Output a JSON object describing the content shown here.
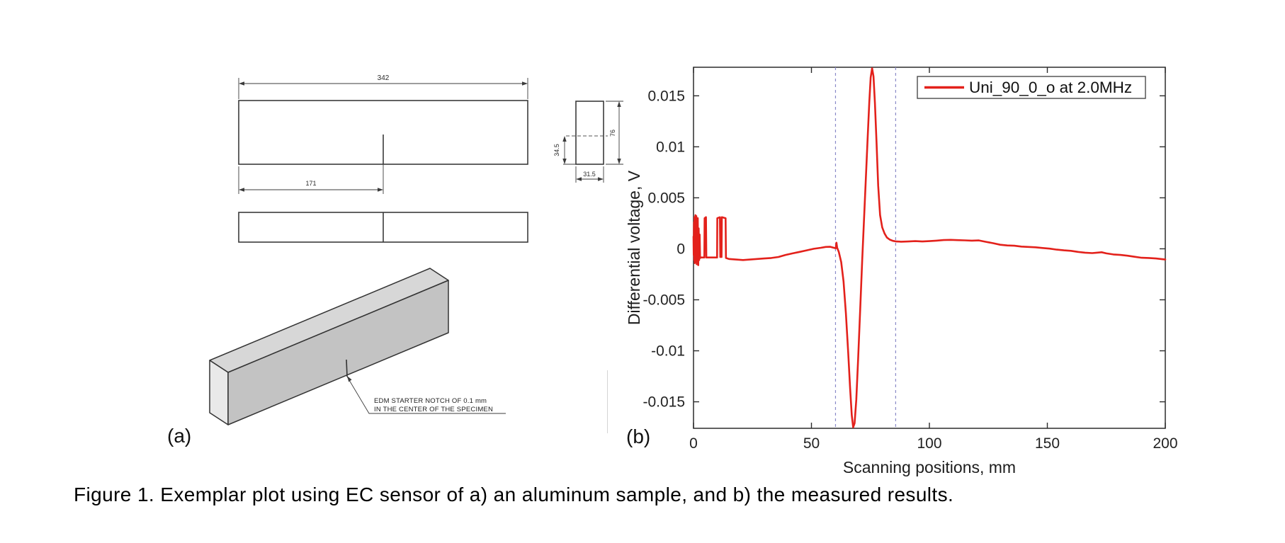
{
  "figure": {
    "panel_a_label": "(a)",
    "panel_b_label": "(b)",
    "caption": "Figure 1. Exemplar plot using EC sensor of a) an aluminum sample, and b) the measured results."
  },
  "drawing": {
    "front_view": {
      "length_dim": "342",
      "notch_offset_dim": "171"
    },
    "end_view": {
      "width_dim": "31.5",
      "height_dim": "76",
      "notch_depth_dim": "34.5"
    },
    "notch_note_line1": "EDM STARTER NOTCH OF 0.1 mm",
    "notch_note_line2": "IN THE CENTER OF THE SPECIMEN",
    "colors": {
      "line": "#3b3b3b",
      "face_front": "#c3c3c3",
      "face_top": "#d7d7d7",
      "face_end": "#e9e9e9"
    }
  },
  "chart_data": {
    "type": "line",
    "title": "",
    "xlabel": "Scanning positions, mm",
    "ylabel": "Differential voltage, V",
    "xlim": [
      0,
      200
    ],
    "ylim": [
      -0.0176,
      0.0178
    ],
    "xticks": [
      0,
      50,
      100,
      150,
      200
    ],
    "yticks": [
      -0.015,
      -0.01,
      -0.005,
      0,
      0.005,
      0.01,
      0.015
    ],
    "ytick_labels": [
      "-0.015",
      "-0.01",
      "-0.005",
      "0",
      "0.005",
      "0.01",
      "0.015"
    ],
    "grid": false,
    "box": true,
    "tick_direction": "in",
    "axis_color": "#2b2b2b",
    "background": "#ffffff",
    "legend": {
      "position": "top-right",
      "entries": [
        {
          "label": "Uni_90_0_o at 2.0MHz",
          "color": "#e3211b"
        }
      ]
    },
    "vlines": {
      "x": [
        60.2,
        85.7
      ],
      "style": "dashed",
      "color": "#8a8ac8"
    },
    "series": [
      {
        "name": "Uni_90_0_o at 2.0MHz",
        "color": "#e3211b",
        "points": [
          [
            0,
            0.0012
          ],
          [
            0.1,
            -0.0006
          ],
          [
            0.2,
            0.0026
          ],
          [
            0.3,
            -0.0011
          ],
          [
            0.4,
            0.0031
          ],
          [
            0.5,
            -0.0014
          ],
          [
            0.6,
            0.0029
          ],
          [
            0.7,
            -0.0007
          ],
          [
            0.8,
            0.0033
          ],
          [
            0.9,
            -0.0013
          ],
          [
            1.0,
            0.003
          ],
          [
            1.1,
            -0.0005
          ],
          [
            1.2,
            0.0032
          ],
          [
            1.35,
            -0.0015
          ],
          [
            1.5,
            0.0028
          ],
          [
            1.65,
            -0.0009
          ],
          [
            1.8,
            0.003
          ],
          [
            2.0,
            -0.0016
          ],
          [
            2.2,
            0.002
          ],
          [
            2.4,
            -0.0011
          ],
          [
            2.6,
            0.0014
          ],
          [
            2.8,
            -0.0009
          ],
          [
            3.2,
            -0.00085
          ],
          [
            4.6,
            -0.00085
          ],
          [
            4.7,
            0.003
          ],
          [
            5.3,
            0.0031
          ],
          [
            5.45,
            -0.00085
          ],
          [
            10.0,
            -0.00085
          ],
          [
            10.1,
            0.003
          ],
          [
            11.2,
            0.0031
          ],
          [
            11.35,
            -0.0008
          ],
          [
            11.9,
            -0.0008
          ],
          [
            12.0,
            0.0031
          ],
          [
            13.6,
            0.003
          ],
          [
            13.75,
            -0.0009
          ],
          [
            15,
            -0.001
          ],
          [
            18,
            -0.00105
          ],
          [
            21,
            -0.0011
          ],
          [
            24,
            -0.00105
          ],
          [
            27,
            -0.001
          ],
          [
            30,
            -0.00095
          ],
          [
            33,
            -0.0009
          ],
          [
            36,
            -0.0008
          ],
          [
            39,
            -0.0006
          ],
          [
            42,
            -0.00045
          ],
          [
            45,
            -0.0003
          ],
          [
            48,
            -0.00015
          ],
          [
            51,
            0.0
          ],
          [
            54,
            0.0001
          ],
          [
            56,
            0.00018
          ],
          [
            58,
            0.0002
          ],
          [
            59.5,
            0.0001
          ],
          [
            60.3,
            5e-05
          ],
          [
            60.6,
            0.0006
          ],
          [
            60.9,
            0.0001
          ],
          [
            61.6,
            -0.0003
          ],
          [
            62.6,
            -0.0013
          ],
          [
            63.6,
            -0.0032
          ],
          [
            64.6,
            -0.0063
          ],
          [
            65.6,
            -0.0102
          ],
          [
            66.4,
            -0.0137
          ],
          [
            67.1,
            -0.0163
          ],
          [
            67.7,
            -0.0175
          ],
          [
            68.3,
            -0.0171
          ],
          [
            69.0,
            -0.0148
          ],
          [
            69.8,
            -0.0108
          ],
          [
            70.7,
            -0.0058
          ],
          [
            71.5,
            -0.0012
          ],
          [
            72.2,
            0.0024
          ],
          [
            73.0,
            0.0066
          ],
          [
            73.8,
            0.0108
          ],
          [
            74.5,
            0.0143
          ],
          [
            75.1,
            0.0168
          ],
          [
            75.7,
            0.0177
          ],
          [
            76.3,
            0.0169
          ],
          [
            76.9,
            0.0143
          ],
          [
            77.6,
            0.0104
          ],
          [
            78.3,
            0.0062
          ],
          [
            79.1,
            0.0033
          ],
          [
            80.0,
            0.0021
          ],
          [
            81.0,
            0.0015
          ],
          [
            82.0,
            0.0011
          ],
          [
            83.2,
            0.0009
          ],
          [
            84.5,
            0.00078
          ],
          [
            86,
            0.00072
          ],
          [
            88,
            0.0007
          ],
          [
            91,
            0.00072
          ],
          [
            94,
            0.00075
          ],
          [
            97,
            0.00072
          ],
          [
            100,
            0.00075
          ],
          [
            103,
            0.0008
          ],
          [
            106,
            0.00086
          ],
          [
            109,
            0.00088
          ],
          [
            112,
            0.00085
          ],
          [
            115,
            0.00083
          ],
          [
            118,
            0.0008
          ],
          [
            121,
            0.00082
          ],
          [
            124,
            0.00068
          ],
          [
            127,
            0.00055
          ],
          [
            130,
            0.0004
          ],
          [
            133,
            0.00033
          ],
          [
            136,
            0.0003
          ],
          [
            139,
            0.00022
          ],
          [
            142,
            0.00018
          ],
          [
            145,
            0.00015
          ],
          [
            148,
            8e-05
          ],
          [
            151,
            2e-05
          ],
          [
            154,
            -8e-05
          ],
          [
            157,
            -0.00015
          ],
          [
            160,
            -0.0002
          ],
          [
            163,
            -0.0003
          ],
          [
            166,
            -0.00038
          ],
          [
            169,
            -0.00042
          ],
          [
            171,
            -0.00038
          ],
          [
            173,
            -0.00034
          ],
          [
            175,
            -0.00045
          ],
          [
            178,
            -0.00055
          ],
          [
            181,
            -0.0006
          ],
          [
            184,
            -0.00068
          ],
          [
            187,
            -0.00078
          ],
          [
            190,
            -0.00088
          ],
          [
            193,
            -0.0009
          ],
          [
            196,
            -0.00095
          ],
          [
            198,
            -0.001
          ],
          [
            200,
            -0.00105
          ]
        ]
      }
    ]
  }
}
